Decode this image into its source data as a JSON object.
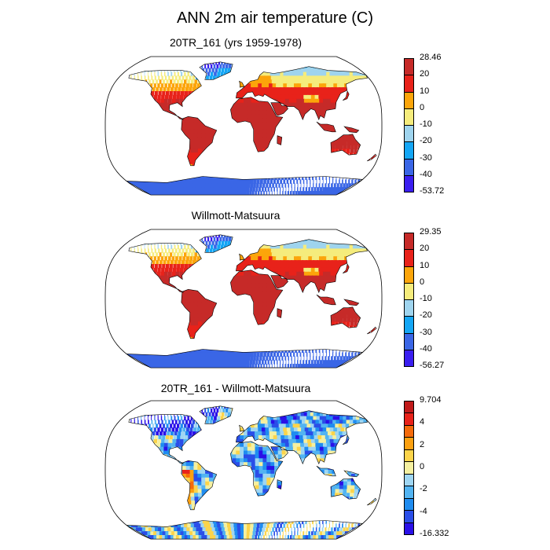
{
  "figure": {
    "title": "ANN 2m air temperature (C)"
  },
  "panels": [
    {
      "title": "20TR_161 (yrs 1959-1978)",
      "kind": "abs",
      "colorbar": {
        "colors": [
          "#3a1ef0",
          "#3a66e6",
          "#14a6f5",
          "#9fd4ee",
          "#f5ec7c",
          "#fca50a",
          "#e8221a",
          "#c62a28"
        ],
        "labels": [
          "28.46",
          "20",
          "10",
          "0",
          "-10",
          "-20",
          "-30",
          "-40",
          "-53.72"
        ]
      }
    },
    {
      "title": "Willmott-Matsuura",
      "kind": "abs",
      "colorbar": {
        "colors": [
          "#3a1ef0",
          "#3a66e6",
          "#14a6f5",
          "#9fd4ee",
          "#f5ec7c",
          "#fca50a",
          "#e8221a",
          "#c62a28"
        ],
        "labels": [
          "29.35",
          "20",
          "10",
          "0",
          "-10",
          "-20",
          "-30",
          "-40",
          "-56.27"
        ]
      }
    },
    {
      "title": "20TR_161 - Willmott-Matsuura",
      "kind": "diff",
      "colorbar": {
        "colors": [
          "#2a10e8",
          "#2a4ee8",
          "#1f8cf0",
          "#52b4f2",
          "#9fd6f2",
          "#f5f0a0",
          "#fcd44a",
          "#fca010",
          "#f56a0a",
          "#e8221a",
          "#c01a1a"
        ],
        "labels": [
          "9.704",
          "4",
          "2",
          "0",
          "-2",
          "-4",
          "-16.332"
        ]
      }
    }
  ]
}
